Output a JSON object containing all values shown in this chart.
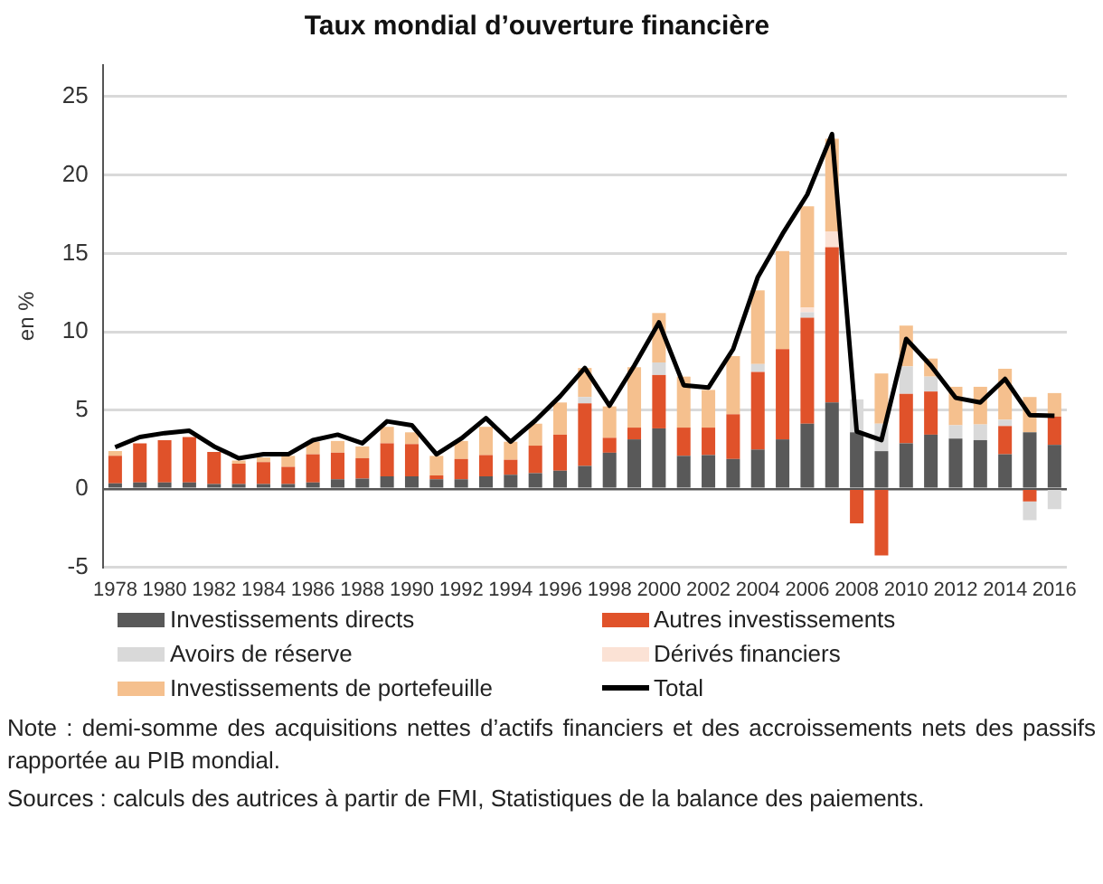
{
  "chart_data": {
    "type": "bar",
    "title": "Taux mondial d’ouverture financière",
    "ylabel": "en %",
    "categories": [
      "1978",
      null,
      "1980",
      null,
      "1982",
      null,
      "1984",
      null,
      "1986",
      null,
      "1988",
      null,
      "1990",
      null,
      "1992",
      null,
      "1994",
      null,
      "1996",
      null,
      "1998",
      null,
      "2000",
      null,
      "2002",
      null,
      "2004",
      null,
      "2006",
      null,
      "2008",
      null,
      "2010",
      null,
      "2012",
      null,
      "2014",
      null,
      "2016"
    ],
    "stacked": true,
    "series": [
      {
        "name": "Investissements directs",
        "color": "#595959",
        "values": [
          0.35,
          0.4,
          0.4,
          0.4,
          0.3,
          0.3,
          0.3,
          0.3,
          0.4,
          0.6,
          0.65,
          0.8,
          0.8,
          0.6,
          0.6,
          0.8,
          0.9,
          1.0,
          1.15,
          1.45,
          2.3,
          3.15,
          3.85,
          2.1,
          2.15,
          1.9,
          2.5,
          3.15,
          4.15,
          5.5,
          3.6,
          2.4,
          2.9,
          3.45,
          3.2,
          3.1,
          2.2,
          3.6,
          2.8
        ]
      },
      {
        "name": "Autres investissements",
        "color": "#e0522a",
        "values": [
          1.75,
          2.5,
          2.7,
          2.9,
          2.05,
          1.3,
          1.4,
          1.1,
          1.8,
          1.7,
          1.3,
          2.1,
          2.05,
          0.25,
          1.3,
          1.35,
          0.95,
          1.75,
          2.3,
          4.0,
          0.95,
          0.75,
          3.4,
          1.8,
          1.75,
          2.85,
          4.95,
          5.75,
          6.75,
          9.9,
          -2.2,
          -4.25,
          3.15,
          2.75,
          0,
          0,
          1.8,
          -0.8,
          1.8
        ]
      },
      {
        "name": "Avoirs de réserve",
        "color": "#d9d9d9",
        "values": [
          0,
          0,
          0,
          0,
          0,
          0,
          0,
          0,
          0,
          0,
          0,
          0,
          0,
          0,
          0,
          0,
          0,
          0,
          0,
          0.4,
          0,
          0,
          0.8,
          0,
          0,
          0,
          0.5,
          0,
          0.35,
          0,
          2.1,
          1.75,
          1.75,
          0.95,
          0.85,
          1.0,
          0.4,
          -1.2,
          -1.3
        ]
      },
      {
        "name": "Dérivés financiers",
        "color": "#fbe2d5",
        "values": [
          0,
          0,
          0,
          0,
          0,
          0,
          0,
          0,
          0,
          0,
          0,
          0,
          0,
          0,
          0,
          0,
          0,
          0,
          0,
          0,
          0,
          0,
          0,
          0,
          0,
          0,
          0,
          0,
          0.3,
          1.0,
          0,
          0,
          0,
          0,
          0,
          0,
          0,
          0,
          0
        ]
      },
      {
        "name": "Investissements de portefeuille",
        "color": "#f5c08e",
        "values": [
          0.3,
          0,
          0,
          0,
          0,
          0.2,
          0.3,
          0.7,
          0.8,
          0.75,
          0.75,
          1.05,
          0.75,
          1.25,
          1.15,
          1.8,
          1.15,
          1.4,
          2.05,
          1.85,
          2.0,
          3.85,
          3.15,
          3.25,
          2.4,
          3.7,
          4.7,
          6.25,
          6.45,
          5.9,
          0,
          3.2,
          2.6,
          1.15,
          2.45,
          2.4,
          3.25,
          2.25,
          1.5
        ]
      },
      {
        "name": "Total",
        "type": "line",
        "color": "#000000",
        "marker": "none",
        "values": [
          2.65,
          3.3,
          3.55,
          3.7,
          2.7,
          1.95,
          2.2,
          2.2,
          3.1,
          3.45,
          2.9,
          4.3,
          4.05,
          2.2,
          3.2,
          4.5,
          3.0,
          4.35,
          5.9,
          7.7,
          5.3,
          7.85,
          10.6,
          6.6,
          6.45,
          8.9,
          13.5,
          16.25,
          18.75,
          22.6,
          3.65,
          3.1,
          9.55,
          7.85,
          5.8,
          5.5,
          7.0,
          4.7,
          4.65
        ]
      }
    ],
    "ylim": [
      -5,
      27
    ],
    "yticks": [
      -5,
      0,
      5,
      10,
      15,
      20,
      25
    ],
    "grid": "y",
    "legend": "bottom",
    "annotations": [
      "Note : demi-somme des acquisitions nettes d’actifs financiers et des accroissements nets des passifs rapportée au PIB mondial.",
      "Sources : calculs des autrices à partir de FMI, Statistiques de la balance des paiements."
    ]
  }
}
